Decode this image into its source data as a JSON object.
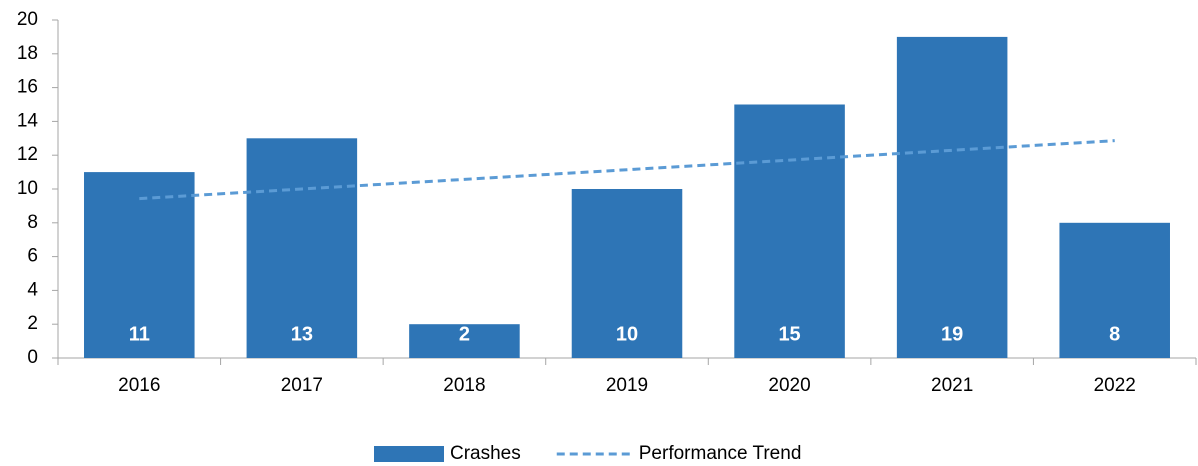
{
  "chart_data": {
    "type": "bar",
    "categories": [
      "2016",
      "2017",
      "2018",
      "2019",
      "2020",
      "2021",
      "2022"
    ],
    "series": [
      {
        "name": "Crashes",
        "color": "#2e75b6",
        "values": [
          11,
          13,
          2,
          10,
          15,
          19,
          8
        ]
      },
      {
        "name": "Performance Trend",
        "type": "line",
        "style": "dashed",
        "color": "#5b9bd5",
        "values": [
          9.43,
          10.0,
          10.57,
          11.14,
          11.71,
          12.29,
          12.86
        ]
      }
    ],
    "ylim": [
      0,
      20
    ],
    "yticks": [
      0,
      2,
      4,
      6,
      8,
      10,
      12,
      14,
      16,
      18,
      20
    ],
    "grid": false,
    "legend": "bottom"
  }
}
